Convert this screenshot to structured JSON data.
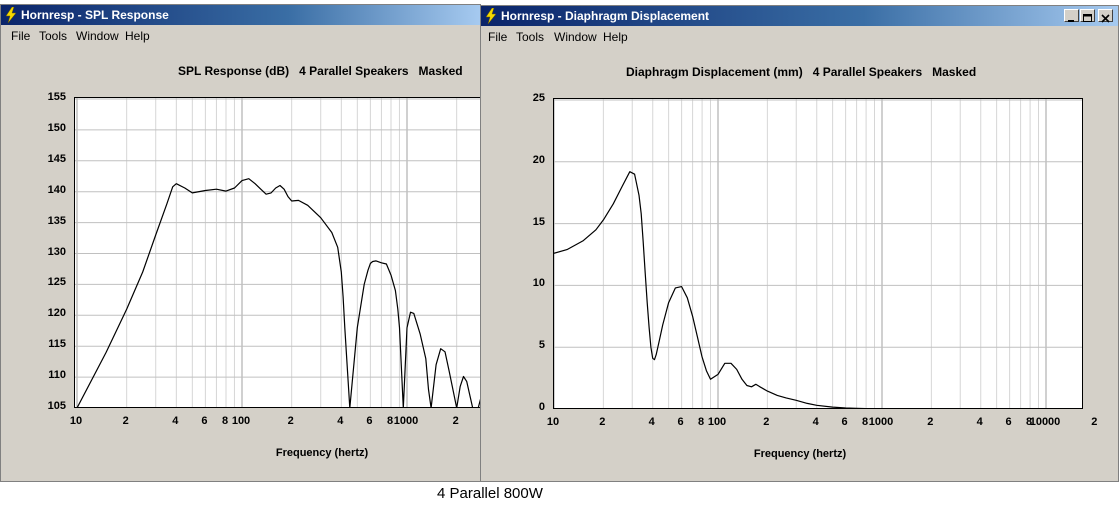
{
  "windows": [
    {
      "title": "Hornresp - SPL Response",
      "menu": [
        "File",
        "Tools",
        "Window",
        "Help"
      ],
      "chart_title": "SPL Response (dB)   4 Parallel Speakers   Masked",
      "x_axis_title": "Frequency (hertz)"
    },
    {
      "title": "Hornresp - Diaphragm Displacement",
      "menu": [
        "File",
        "Tools",
        "Window",
        "Help"
      ],
      "chart_title": "Diaphragm Displacement (mm)   4 Parallel Speakers   Masked",
      "x_axis_title": "Frequency (hertz)"
    }
  ],
  "caption": "4 Parallel 800W",
  "chart_data": [
    {
      "type": "line",
      "title": "SPL Response (dB)   4 Parallel Speakers   Masked",
      "xlabel": "Frequency (hertz)",
      "ylabel": "",
      "xscale": "log",
      "xlim": [
        10,
        3700
      ],
      "ylim": [
        105,
        155
      ],
      "grid": true,
      "yticks": [
        "155",
        "150",
        "145",
        "140",
        "135",
        "130",
        "125",
        "120",
        "115",
        "110",
        "105"
      ],
      "xticks": [
        "10",
        "2",
        "4",
        "6",
        "8",
        "100",
        "2",
        "4",
        "6",
        "8",
        "1000",
        "2"
      ],
      "series": [
        {
          "x": [
            10,
            15,
            20,
            25,
            30,
            35,
            38,
            40,
            45,
            50,
            60,
            70,
            80,
            90,
            100,
            110,
            120,
            130,
            140,
            150,
            160,
            170,
            180,
            190,
            200,
            220,
            250,
            300,
            350,
            380,
            400,
            410,
            420,
            450,
            500,
            550,
            580,
            600,
            620,
            650,
            700,
            750,
            800,
            850,
            880,
            900,
            950,
            1000,
            1050,
            1100,
            1200,
            1300,
            1350,
            1400,
            1500,
            1600,
            1700,
            1800,
            2000,
            2100,
            2200,
            2300,
            2500,
            2600,
            2700,
            2800,
            2900,
            3000,
            3100,
            3300,
            3500,
            3700
          ],
          "y": [
            105,
            114,
            121,
            127,
            133,
            138,
            140.8,
            141.3,
            140.6,
            139.8,
            140.2,
            140.4,
            140.1,
            140.6,
            141.8,
            142.1,
            141.3,
            140.4,
            139.6,
            139.8,
            140.6,
            141.0,
            140.4,
            139.2,
            138.5,
            138.6,
            137.8,
            135.8,
            133.4,
            131.0,
            127.0,
            123.0,
            118.0,
            105.0,
            118.0,
            125.0,
            127.3,
            128.4,
            128.7,
            128.8,
            128.5,
            128.3,
            126.5,
            124.0,
            121.0,
            118.0,
            105.0,
            118.0,
            120.5,
            120.3,
            117.0,
            113.0,
            108.0,
            105.0,
            112.0,
            114.6,
            114.1,
            111.0,
            105.0,
            108.5,
            110.1,
            109.3,
            105.0,
            105.0,
            105.0,
            106.6,
            106.2,
            105.0,
            105.0,
            105.0,
            105.0,
            105.0
          ]
        }
      ]
    },
    {
      "type": "line",
      "title": "Diaphragm Displacement (mm)   4 Parallel Speakers   Masked",
      "xlabel": "Frequency (hertz)",
      "ylabel": "",
      "xscale": "log",
      "xlim": [
        10,
        20000
      ],
      "ylim": [
        0,
        25
      ],
      "grid": true,
      "yticks": [
        "25",
        "20",
        "15",
        "10",
        "5",
        "0"
      ],
      "xticks": [
        "10",
        "2",
        "4",
        "6",
        "8",
        "100",
        "2",
        "4",
        "6",
        "8",
        "1000",
        "2",
        "4",
        "6",
        "8",
        "10000",
        "2"
      ],
      "series": [
        {
          "x": [
            10,
            12,
            15,
            18,
            20,
            23,
            26,
            29,
            31,
            33,
            34,
            35,
            36,
            37,
            38,
            39,
            40,
            41,
            42,
            44,
            46,
            50,
            55,
            60,
            65,
            70,
            75,
            80,
            85,
            90,
            100,
            110,
            120,
            130,
            140,
            150,
            160,
            170,
            180,
            200,
            230,
            260,
            300,
            350,
            400,
            500,
            600,
            700,
            800,
            900,
            1000
          ],
          "y": [
            12.6,
            12.9,
            13.6,
            14.5,
            15.3,
            16.6,
            18.0,
            19.2,
            19.0,
            17.3,
            15.8,
            13.5,
            11.0,
            8.6,
            6.6,
            5.0,
            4.1,
            4.0,
            4.4,
            5.6,
            6.8,
            8.6,
            9.8,
            9.9,
            9.0,
            7.5,
            5.8,
            4.2,
            3.1,
            2.4,
            2.8,
            3.7,
            3.7,
            3.2,
            2.4,
            1.9,
            1.8,
            2.0,
            1.8,
            1.45,
            1.1,
            0.9,
            0.7,
            0.45,
            0.3,
            0.15,
            0.08,
            0.05,
            0.03,
            0.02,
            0.01
          ]
        }
      ]
    }
  ]
}
